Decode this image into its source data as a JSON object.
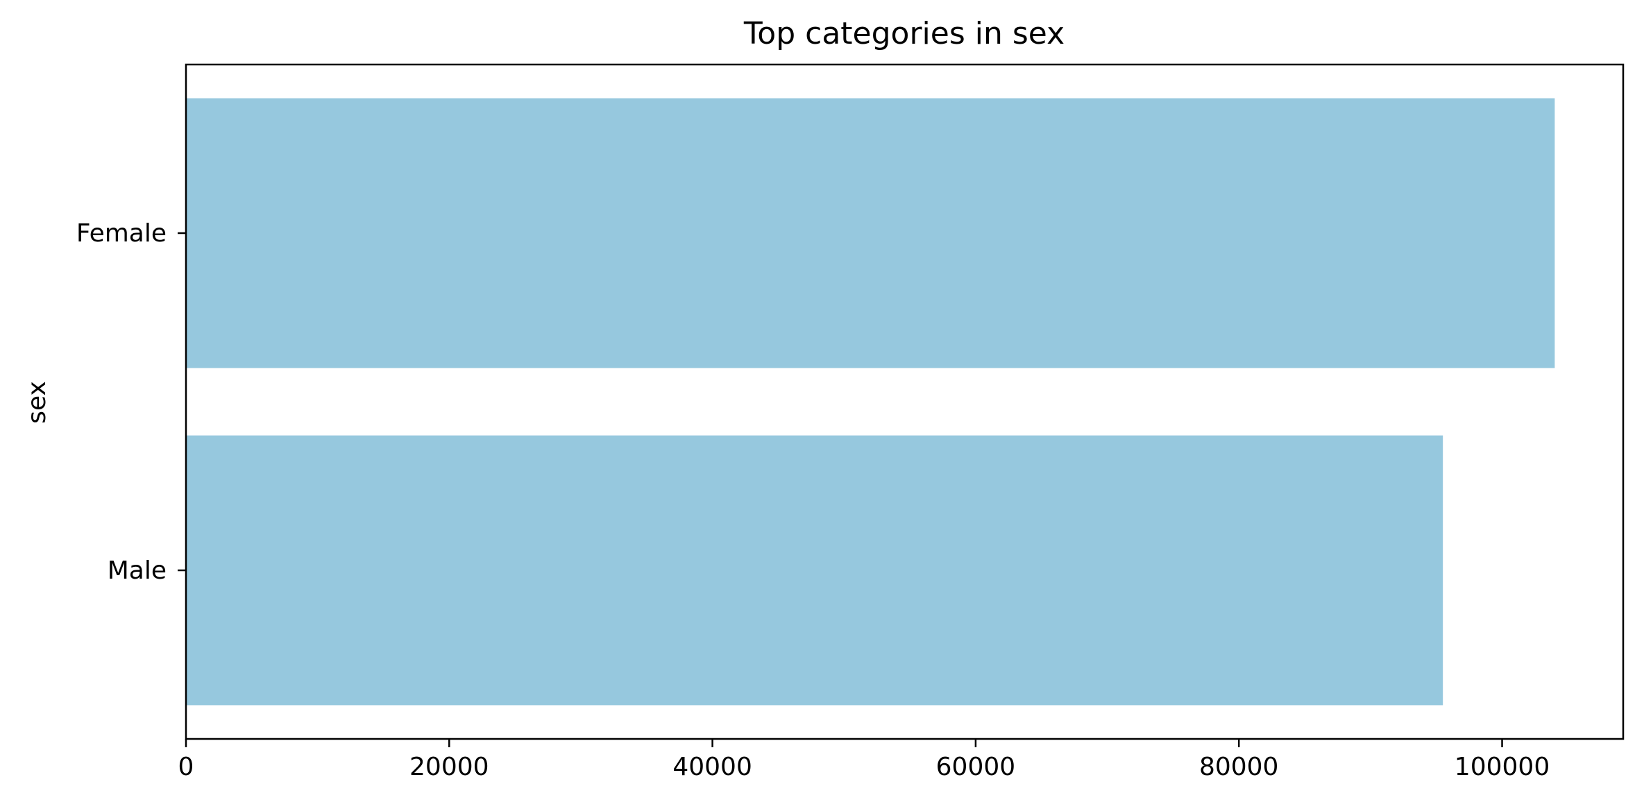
{
  "chart_data": {
    "type": "bar",
    "orientation": "horizontal",
    "title": "Top categories in sex",
    "ylabel": "sex",
    "xlabel": "",
    "categories": [
      "Female",
      "Male"
    ],
    "values": [
      104000,
      95500
    ],
    "xlim": [
      0,
      109200
    ],
    "xticks": [
      0,
      20000,
      40000,
      60000,
      80000,
      100000
    ],
    "grid": false,
    "legend": "none",
    "bar_color": "#96c8de"
  }
}
